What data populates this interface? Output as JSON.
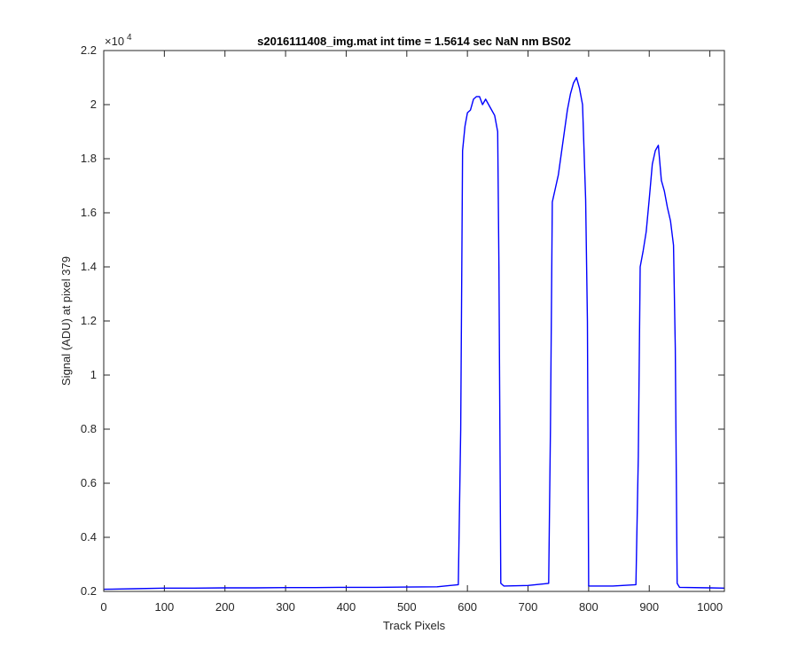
{
  "chart_data": {
    "type": "line",
    "title": "s2016111408_img.mat int time = 1.5614 sec  NaN nm BS02",
    "xlabel": "Track Pixels",
    "ylabel": "Signal (ADU) at pixel 379",
    "xlim": [
      0,
      1024
    ],
    "ylim": [
      2000,
      22000
    ],
    "y_exponent_label": "×10",
    "y_exponent_power": "4",
    "x_ticks": [
      {
        "value": 0,
        "label": "0"
      },
      {
        "value": 100,
        "label": "100"
      },
      {
        "value": 200,
        "label": "200"
      },
      {
        "value": 300,
        "label": "300"
      },
      {
        "value": 400,
        "label": "400"
      },
      {
        "value": 500,
        "label": "500"
      },
      {
        "value": 600,
        "label": "600"
      },
      {
        "value": 700,
        "label": "700"
      },
      {
        "value": 800,
        "label": "800"
      },
      {
        "value": 900,
        "label": "900"
      },
      {
        "value": 1000,
        "label": "1000"
      }
    ],
    "y_ticks": [
      {
        "value": 2000,
        "label": "0.2"
      },
      {
        "value": 4000,
        "label": "0.4"
      },
      {
        "value": 6000,
        "label": "0.6"
      },
      {
        "value": 8000,
        "label": "0.8"
      },
      {
        "value": 10000,
        "label": "1"
      },
      {
        "value": 12000,
        "label": "1.2"
      },
      {
        "value": 14000,
        "label": "1.4"
      },
      {
        "value": 16000,
        "label": "1.6"
      },
      {
        "value": 18000,
        "label": "1.8"
      },
      {
        "value": 20000,
        "label": "2"
      },
      {
        "value": 22000,
        "label": "2.2"
      }
    ],
    "grid": false,
    "line_color": "#0000ff",
    "series": [
      {
        "x": [
          0,
          50,
          100,
          150,
          200,
          250,
          300,
          350,
          400,
          450,
          500,
          550,
          585,
          589,
          592,
          596,
          600,
          605,
          610,
          615,
          620,
          625,
          630,
          635,
          640,
          645,
          650,
          652,
          655,
          660,
          700,
          734,
          737,
          740,
          745,
          750,
          755,
          760,
          765,
          770,
          775,
          780,
          785,
          790,
          795,
          798,
          800,
          840,
          878,
          882,
          885,
          890,
          895,
          900,
          905,
          910,
          915,
          920,
          925,
          930,
          935,
          940,
          943,
          946,
          950,
          1000,
          1024
        ],
        "y": [
          2080,
          2100,
          2120,
          2120,
          2130,
          2130,
          2140,
          2140,
          2150,
          2150,
          2160,
          2170,
          2250,
          8000,
          18300,
          19200,
          19700,
          19800,
          20200,
          20300,
          20300,
          20000,
          20200,
          20000,
          19800,
          19600,
          19000,
          14000,
          2300,
          2200,
          2220,
          2300,
          8000,
          16400,
          16900,
          17400,
          18200,
          19000,
          19800,
          20400,
          20800,
          21000,
          20600,
          20000,
          16500,
          12000,
          2200,
          2200,
          2250,
          7000,
          14000,
          14600,
          15300,
          16500,
          17800,
          18300,
          18500,
          17200,
          16800,
          16200,
          15700,
          14800,
          11000,
          2300,
          2150,
          2130,
          2120
        ]
      }
    ]
  }
}
